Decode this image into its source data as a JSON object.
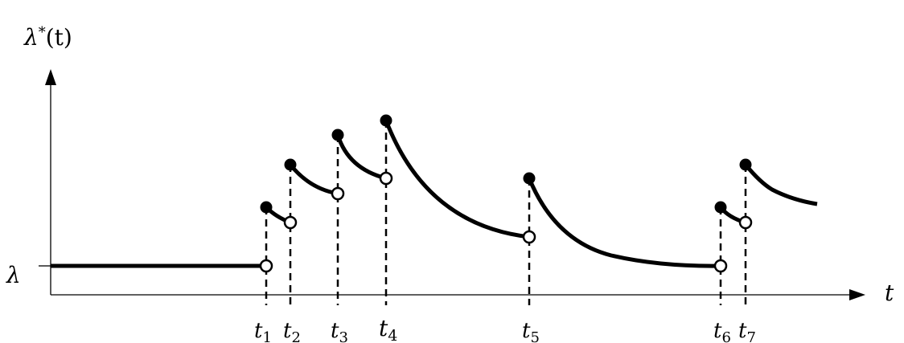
{
  "labels": {
    "y_axis_symbol": "λ",
    "y_axis_superscript": "*",
    "y_axis_arg": "(t)",
    "x_axis": "t",
    "baseline": "λ"
  },
  "events": [
    {
      "base": "t",
      "sub": "1"
    },
    {
      "base": "t",
      "sub": "2"
    },
    {
      "base": "t",
      "sub": "3"
    },
    {
      "base": "t",
      "sub": "4"
    },
    {
      "base": "t",
      "sub": "5"
    },
    {
      "base": "t",
      "sub": "6"
    },
    {
      "base": "t",
      "sub": "7"
    }
  ]
}
